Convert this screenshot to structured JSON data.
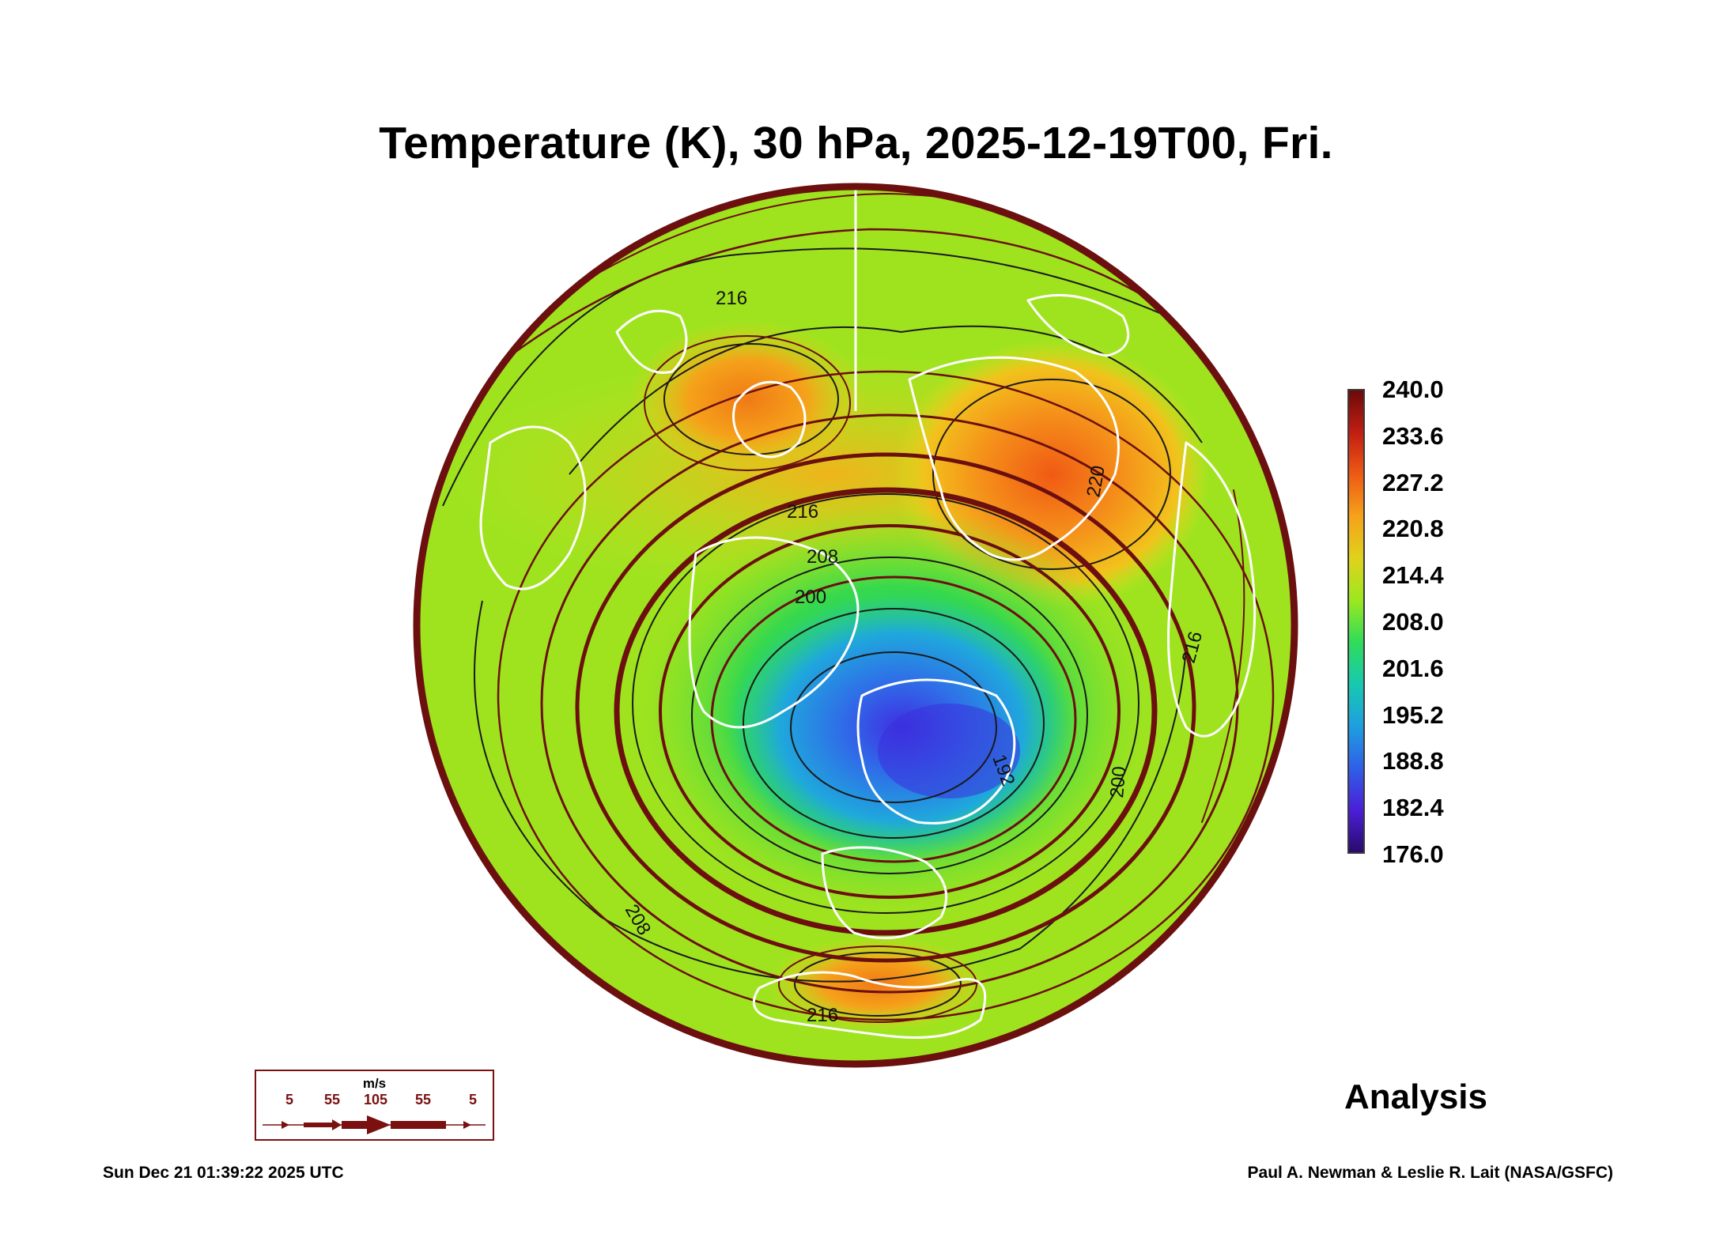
{
  "title": "Temperature (K), 30 hPa, 2025-12-19T00, Fri.",
  "colorbar": {
    "ticks": [
      "240.0",
      "233.6",
      "227.2",
      "220.8",
      "214.4",
      "208.0",
      "201.6",
      "195.2",
      "188.8",
      "182.4",
      "176.0"
    ],
    "min": 176.0,
    "max": 240.0,
    "colors": [
      "#2a0a6b",
      "#4b1fd8",
      "#2f5fe8",
      "#1e9fe0",
      "#17c9b0",
      "#2fdc5a",
      "#9be81e",
      "#e0d21c",
      "#f5a21a",
      "#ee5a14",
      "#c21e12",
      "#6b0a0a"
    ]
  },
  "contour_labels": [
    "216",
    "216",
    "208",
    "200",
    "192",
    "216",
    "220",
    "208",
    "216",
    "200"
  ],
  "status": "Analysis",
  "wind_legend": {
    "units": "m/s",
    "labels": [
      "5",
      "55",
      "105",
      "55",
      "5"
    ]
  },
  "footer": {
    "timestamp": "Sun Dec 21 01:39:22 2025 UTC",
    "credit": "Paul A. Newman & Leslie R. Lait (NASA/GSFC)"
  }
}
